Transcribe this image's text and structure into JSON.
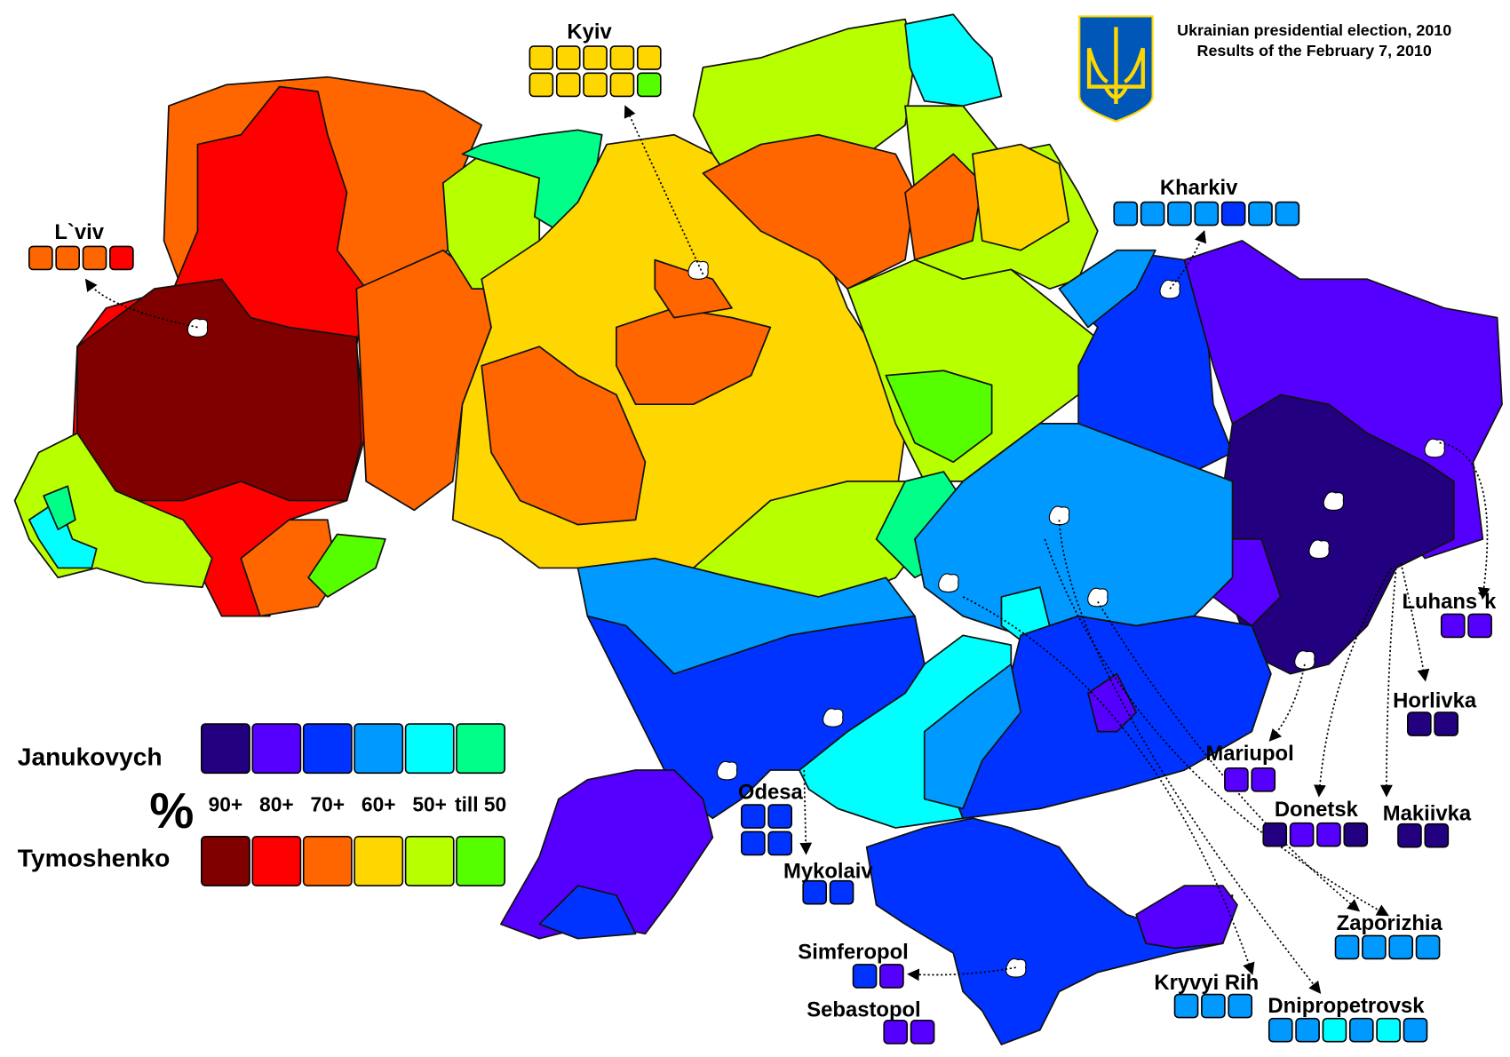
{
  "title": {
    "line1": "Ukrainian presidential election, 2010",
    "line2": "Results of the February 7, 2010"
  },
  "colors": {
    "J90": "#220080",
    "J80": "#5500ff",
    "J70": "#0033ff",
    "J60": "#0099ff",
    "J50": "#00ffff",
    "J0": "#00ff88",
    "T90": "#800000",
    "T80": "#ff0000",
    "T70": "#ff6600",
    "T60": "#ffd700",
    "T50": "#b8ff00",
    "T0": "#55ff00"
  },
  "legend": {
    "janukovych_label": "Janukovych",
    "tymoshenko_label": "Tymoshenko",
    "percent_symbol": "%",
    "bands": [
      "90+",
      "80+",
      "70+",
      "60+",
      "50+",
      "till 50"
    ],
    "janukovych_keys": [
      "J90",
      "J80",
      "J70",
      "J60",
      "J50",
      "J0"
    ],
    "tymoshenko_keys": [
      "T90",
      "T80",
      "T70",
      "T60",
      "T50",
      "T0"
    ]
  },
  "regions": [
    "T70",
    "T80",
    "T90",
    "T50",
    "J50",
    "J0",
    "T70",
    "T0",
    "T70",
    "T50",
    "J0",
    "T60",
    "T70",
    "T70",
    "T70",
    "T50",
    "J50",
    "T70",
    "T50",
    "T70",
    "T60",
    "T50",
    "T0",
    "T50",
    "J0",
    "J70",
    "J60",
    "J80",
    "J90",
    "J80",
    "J60",
    "J50",
    "J70",
    "J80",
    "J50",
    "J60",
    "J60",
    "J70",
    "J80",
    "J70",
    "J70",
    "J80"
  ],
  "cities": [
    {
      "name": "Kyiv",
      "boxes": [
        "T60",
        "T60",
        "T60",
        "T60",
        "T60",
        "T60",
        "T60",
        "T60",
        "T60",
        "T0"
      ]
    },
    {
      "name": "L`viv",
      "boxes": [
        "T70",
        "T70",
        "T70",
        "T80"
      ]
    },
    {
      "name": "Kharkiv",
      "boxes": [
        "J60",
        "J60",
        "J60",
        "J60",
        "J70",
        "J60",
        "J60"
      ]
    },
    {
      "name": "Luhans`k",
      "boxes": [
        "J80",
        "J80"
      ]
    },
    {
      "name": "Horlivka",
      "boxes": [
        "J90",
        "J90"
      ]
    },
    {
      "name": "Mariupol",
      "boxes": [
        "J80",
        "J80"
      ]
    },
    {
      "name": "Donetsk",
      "boxes": [
        "J90",
        "J80",
        "J80",
        "J90"
      ]
    },
    {
      "name": "Makiivka",
      "boxes": [
        "J90",
        "J90"
      ]
    },
    {
      "name": "Odesa",
      "boxes": [
        "J70",
        "J70",
        "J70",
        "J70"
      ]
    },
    {
      "name": "Mykolaiv",
      "boxes": [
        "J70",
        "J70"
      ]
    },
    {
      "name": "Simferopol",
      "boxes": [
        "J70",
        "J80"
      ]
    },
    {
      "name": "Sebastopol",
      "boxes": [
        "J80",
        "J80"
      ]
    },
    {
      "name": "Zaporizhia",
      "boxes": [
        "J60",
        "J60",
        "J60",
        "J60"
      ]
    },
    {
      "name": "Kryvyi Rih",
      "boxes": [
        "J60",
        "J60",
        "J60"
      ]
    },
    {
      "name": "Dnipropetrovsk",
      "boxes": [
        "J60",
        "J60",
        "J50",
        "J60",
        "J50",
        "J60"
      ]
    }
  ],
  "emblem": {
    "shield_color": "#0057b7",
    "trident_color": "#ffd700"
  }
}
